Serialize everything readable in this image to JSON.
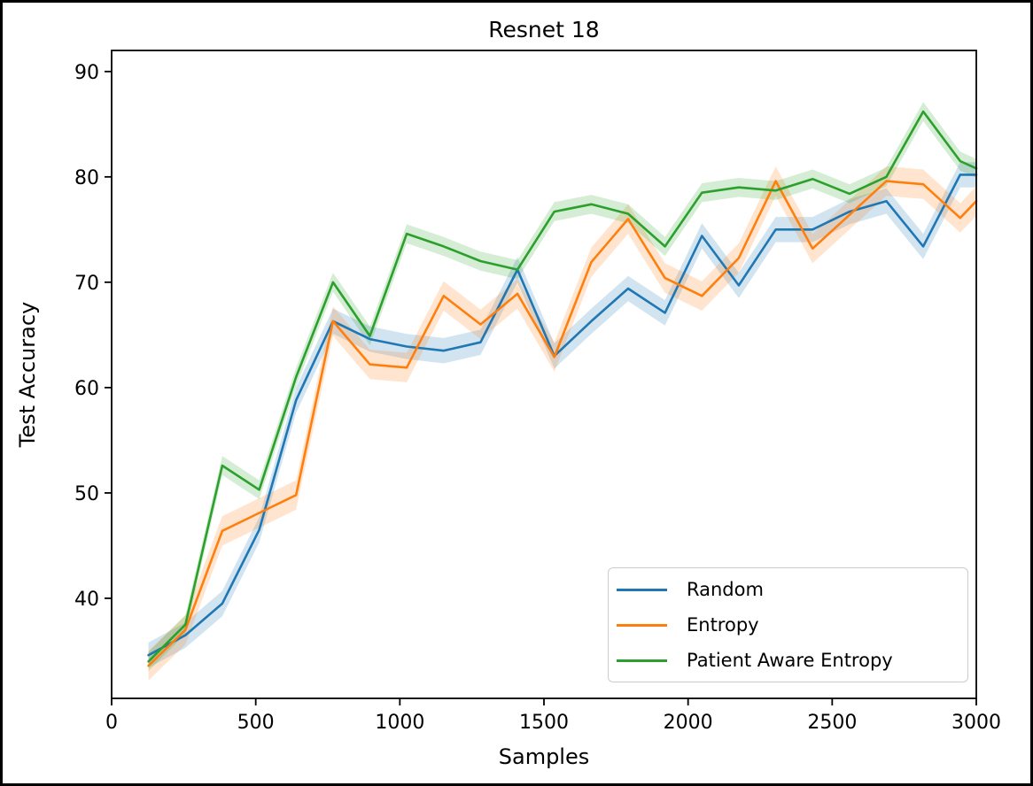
{
  "figure": {
    "background": "#ffffff",
    "frame_color": "#000000"
  },
  "chart_data": {
    "type": "line",
    "title": "Resnet 18",
    "xlabel": "Samples",
    "ylabel": "Test Accuracy",
    "xlim": [
      0,
      3000
    ],
    "ylim": [
      30.5,
      92
    ],
    "xticks": [
      0,
      500,
      1000,
      1500,
      2000,
      2500,
      3000
    ],
    "yticks": [
      40,
      50,
      60,
      70,
      80,
      90
    ],
    "grid": false,
    "legend_position": "lower right",
    "x": [
      128,
      256,
      384,
      512,
      640,
      768,
      896,
      1024,
      1152,
      1280,
      1408,
      1536,
      1664,
      1792,
      1920,
      2048,
      2176,
      2304,
      2432,
      2560,
      2688,
      2816,
      2944,
      3000
    ],
    "series": [
      {
        "name": "Random",
        "color": "#1f77b4",
        "band_halfwidth": 1.2,
        "values": [
          34.6,
          36.5,
          39.5,
          46.5,
          58.8,
          66.3,
          64.6,
          63.9,
          63.5,
          64.3,
          71.2,
          63.0,
          66.3,
          69.4,
          67.1,
          74.4,
          69.7,
          75.0,
          75.0,
          76.7,
          77.7,
          73.4,
          80.2,
          80.2
        ]
      },
      {
        "name": "Entropy",
        "color": "#ff7f0e",
        "band_halfwidth": 1.4,
        "values": [
          33.6,
          37.0,
          46.4,
          48.1,
          49.8,
          66.3,
          62.2,
          61.9,
          68.7,
          66.0,
          68.9,
          62.9,
          71.9,
          76.0,
          70.4,
          68.7,
          72.3,
          79.6,
          73.2,
          76.4,
          79.6,
          79.3,
          76.1,
          77.7
        ]
      },
      {
        "name": "Patient Aware Entropy",
        "color": "#2ca02c",
        "band_halfwidth": 0.9,
        "values": [
          34.0,
          37.5,
          52.6,
          50.3,
          61.0,
          70.0,
          64.9,
          74.6,
          73.4,
          72.0,
          71.2,
          76.7,
          77.4,
          76.5,
          73.4,
          78.5,
          79.0,
          78.7,
          79.8,
          78.4,
          80.0,
          86.2,
          81.5,
          80.8
        ]
      }
    ]
  }
}
